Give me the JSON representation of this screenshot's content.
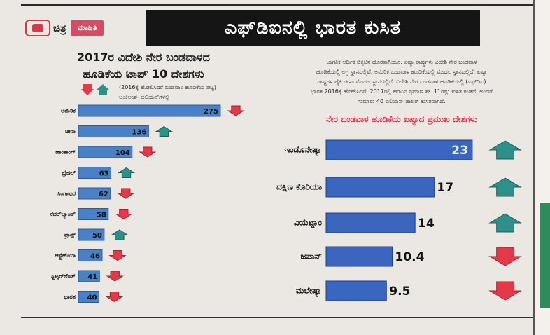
{
  "brand": {
    "name": "ಚಿತ್ರ",
    "tag": "ಮಾಹಿತಿ"
  },
  "headline": "ಎಫ್‌ಡಿಐನಲ್ಲಿ ಭಾರತ ಕುಸಿತ",
  "left_title_line1": "2017ರ ವಿದೇಶಿ ನೇರ ಬಂಡವಾಳದ",
  "left_title_line2": "ಹೂಡಿಕೆಯ ಟಾಪ್ 10 ದೇಶಗಳು",
  "left_note_line1": "(2016ಕ್ಕೆ ಹೋಲಿಸಿದರೆ ಬಂಡವಾಳ ಹೂಡಿಕೆಯ ಪಟ್ಟ)",
  "left_note_line2": "ಅಂಕಿಅಂಶ- ಬಿಲಿಯನ್‌ಗಳಲ್ಲಿ",
  "body_text_line1": "ಜಾಗತಿಕ ಆರ್ಥಿಕ ಬಿಕ್ಕಟಿನ ಹೊರತಾಗಿಯೂ, ಏಷ್ಯಾ ರಾಷ್ಟ್ರಗಳು ವಿದೇಶಿ ನೇರ ಬಂಡವಾಳ",
  "body_text_line2": "ಹೂಡಿಕೆಯಲ್ಲಿ ಅಗ್ರ ಸ್ಥಾನದಲ್ಲಿವೆ. ಅಮೆರಿಕ ಬಂಡವಾಳ ಹೂಡಿಕೆಯಲ್ಲಿ ಮೊದಲ ಸ್ಥಾನದಲ್ಲಿದೆ. ಏಷ್ಯಾ",
  "body_text_line3": "ರಾಷ್ಟ್ರಗಳ ಪೈಕಿ ಚೀನಾ ಮೊದಲ ಸ್ಥಾನದಲ್ಲಿದೆ. ವಿದೇಶಿ ನೇರ ಬಂಡವಾಳ ಹೂಡಿಕೆಯಲ್ಲಿ (ಎಫ್‌ಡಿಐ)",
  "body_text_line4": "ಭಾರತ 2016ಕ್ಕೆ ಹೋಲಿಸಿದರೆ, 2017ರಲ್ಲಿ ಹರಿವಿನ ಪ್ರಮಾಣ ಶೇ. 11ರಷ್ಟು ಕುಸಿತ ಕಂಡಿದೆ. ಅಂದರೆ",
  "body_text_line5": "ಸುಮಾರು 40 ಬಿಲಿಯನ್ ಡಾಲರ್ ಕುಸಿತವಾಗಿದೆ.",
  "colors": {
    "bar_left": "#4a80c6",
    "bar_left_dark": "#2c5aa0",
    "bar_right": "#3a66c0",
    "bar_right_dark": "#1f3f8a",
    "arrow_up": "#2f8f8a",
    "arrow_down": "#e5394a",
    "title_red": "#e5304d"
  },
  "chart_data": [
    {
      "type": "bar",
      "orientation": "horizontal",
      "title": "2017ರ ವಿದೇಶಿ ನೇರ ಬಂಡವಾಳದ ಹೂಡಿಕೆಯ ಟಾಪ್ 10 ದೇಶಗಳು",
      "unit": "ಬಿಲಿಯನ್‌ಗಳಲ್ಲಿ",
      "categories": [
        "ಅಮೆರಿಕ",
        "ಚೀನಾ",
        "ಹಾಂಕಾಂಗ್",
        "ಬ್ರೆಜಿಲ್",
        "ಸಿಂಗಾಪುರ",
        "ನೆದರ್‌ಲ್ಯಾಂಡ್",
        "ಫ್ರಾನ್ಸ್",
        "ಆಸ್ಟ್ರೇಲಿಯಾ",
        "ಸ್ವಿಟ್ಜರ್‌ಲೆಂಡ್",
        "ಭಾರತ"
      ],
      "values": [
        275,
        136,
        104,
        63,
        62,
        58,
        50,
        46,
        41,
        40
      ],
      "labels": [
        "275",
        "136",
        "104",
        "63",
        "62",
        "58",
        "50",
        "46",
        "41",
        "40"
      ],
      "trend": [
        "down",
        "up",
        "down",
        "up",
        "down",
        "down",
        "up",
        "down",
        "down",
        "down"
      ],
      "xlim": [
        0,
        290
      ]
    },
    {
      "type": "bar",
      "orientation": "horizontal",
      "title": "ನೇರ ಬಂಡವಾಳ ಹೂಡಿಕೆಯ ಏಷ್ಯಾದ ಪ್ರಮುಖ ದೇಶಗಳು",
      "categories": [
        "ಇಂಡೊನೇಷ್ಯಾ",
        "ದಕ್ಷಿಣ ಕೊರಿಯಾ",
        "ವಿಯೆಟ್ನಾಂ",
        "ಜಪಾನ್",
        "ಮಲೇಷ್ಯಾ"
      ],
      "values": [
        23,
        17,
        14,
        10.4,
        9.5
      ],
      "labels": [
        "23",
        "17",
        "14",
        "10.4",
        "9.5"
      ],
      "trend": [
        "up",
        "up",
        "up",
        "down",
        "down"
      ],
      "xlim": [
        0,
        24
      ]
    }
  ]
}
